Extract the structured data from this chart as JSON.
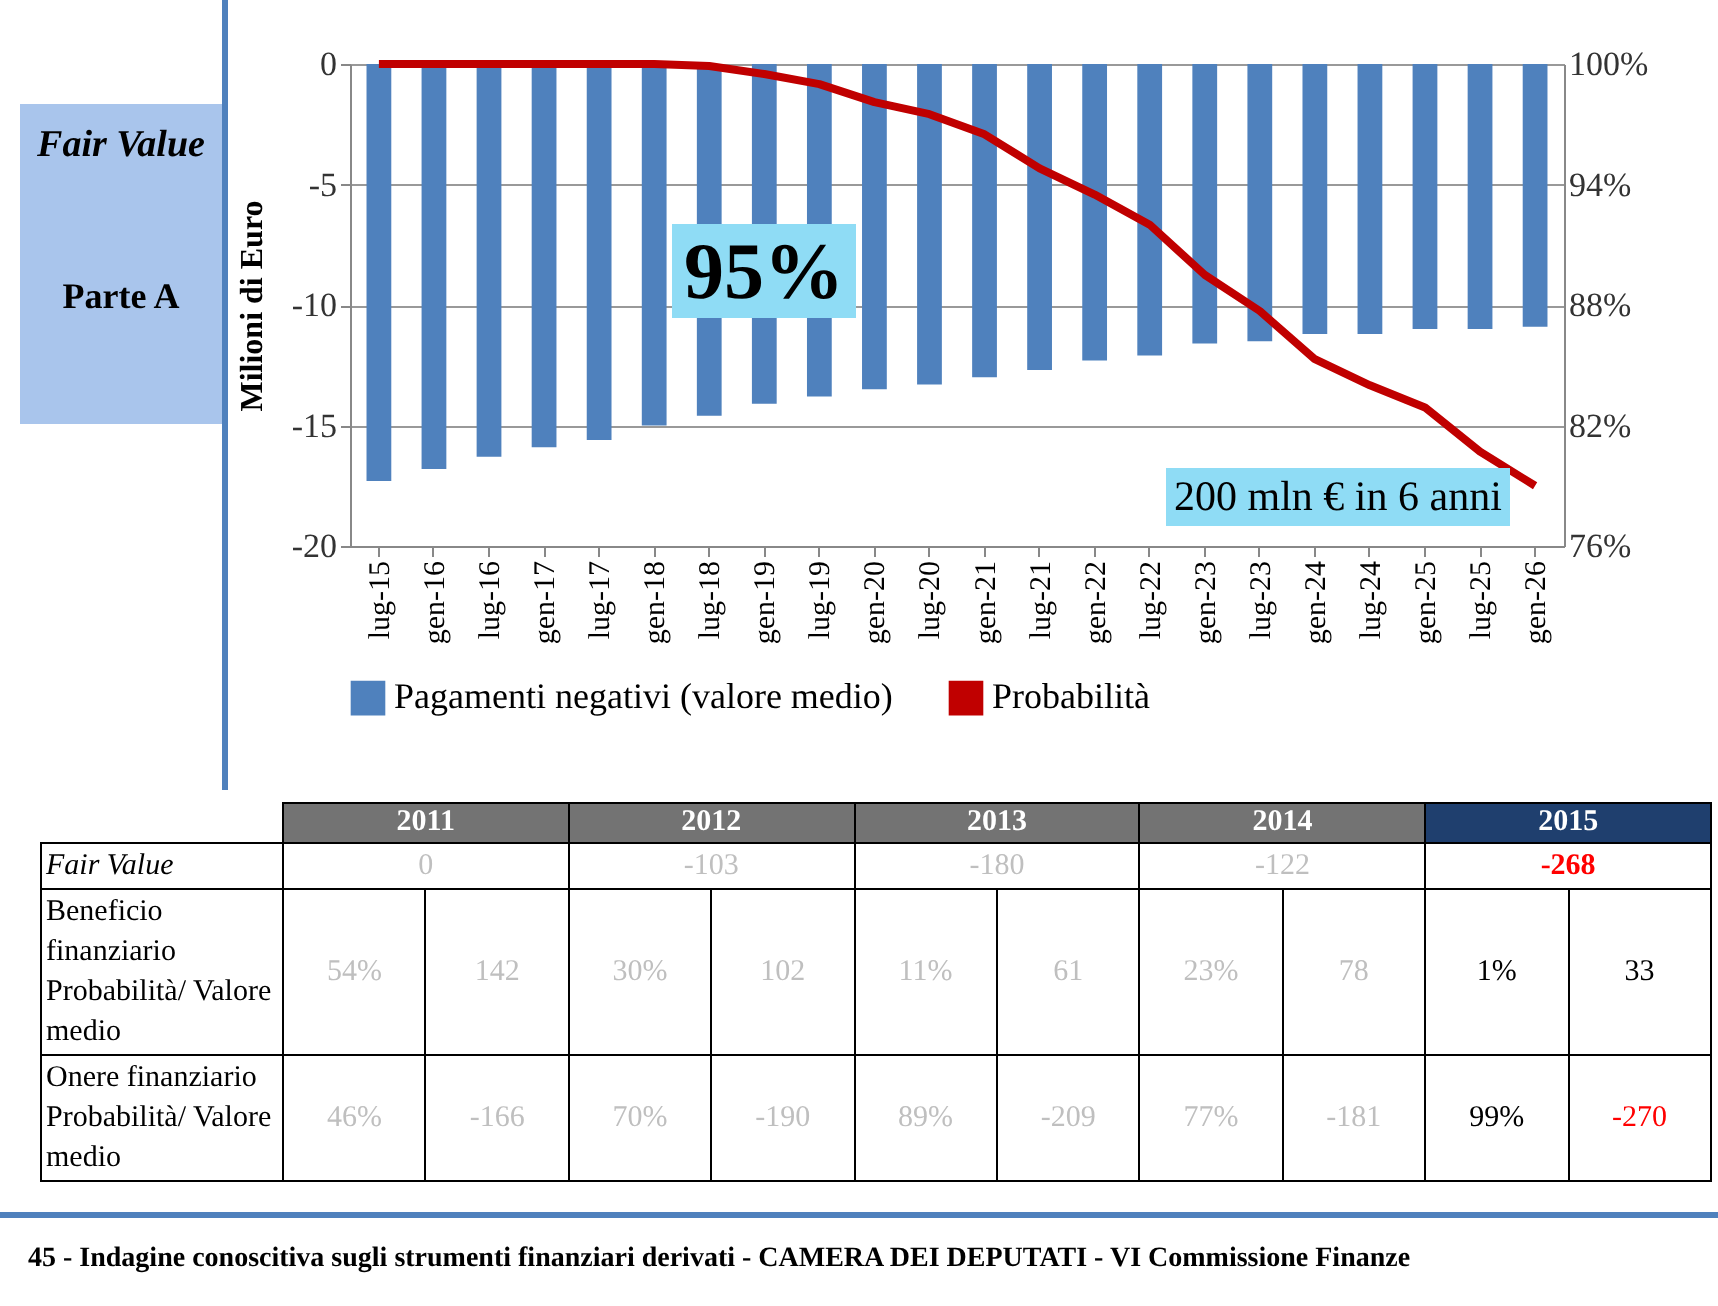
{
  "chart_data": {
    "type": "bar",
    "ylabel": "Milioni di Euro",
    "categories": [
      "lug-15",
      "gen-16",
      "lug-16",
      "gen-17",
      "lug-17",
      "gen-18",
      "lug-18",
      "gen-19",
      "lug-19",
      "gen-20",
      "lug-20",
      "gen-21",
      "lug-21",
      "gen-22",
      "lug-22",
      "gen-23",
      "lug-23",
      "gen-24",
      "lug-24",
      "gen-25",
      "lug-25",
      "gen-26"
    ],
    "series": [
      {
        "name": "Pagamenti negativi (valore medio)",
        "color": "#4f81bd",
        "values": [
          -17.3,
          -16.8,
          -16.3,
          -15.9,
          -15.6,
          -15.0,
          -14.6,
          -14.1,
          -13.8,
          -13.5,
          -13.3,
          -13.0,
          -12.7,
          -12.3,
          -12.1,
          -11.6,
          -11.5,
          -11.2,
          -11.2,
          -11.0,
          -11.0,
          -10.9
        ]
      },
      {
        "name": "Probabilità",
        "type": "line",
        "axis": "y2",
        "color": "#c00000",
        "values": [
          100,
          100,
          100,
          100,
          100,
          100,
          99.9,
          99.5,
          99.0,
          98.1,
          97.5,
          96.5,
          94.8,
          93.5,
          92.0,
          89.5,
          87.7,
          85.3,
          84.0,
          82.9,
          80.7,
          79.0
        ]
      }
    ],
    "ylim": [
      -20,
      0
    ],
    "yticks": [
      -20,
      -15,
      -10,
      -5,
      0
    ],
    "y2lim": [
      76,
      100
    ],
    "y2ticks": [
      {
        "value": 76,
        "label": "76%"
      },
      {
        "value": 82,
        "label": "82%"
      },
      {
        "value": 88,
        "label": "88%"
      },
      {
        "value": 94,
        "label": "94%"
      },
      {
        "value": 100,
        "label": "100%"
      }
    ],
    "grid": "y",
    "legend": "bottom",
    "marker": "none",
    "line_style": "solid",
    "annotations": [
      "95%",
      "200 mln € in 6 anni",
      "Fair Value",
      "Parte A",
      "45 - Indagine conoscitiva sugli strumenti finanziari derivati - CAMERA DEI DEPUTATI - VI Commissione Finanze",
      "2011",
      "2012",
      "2013",
      "2014",
      "2015",
      "Fair Value",
      "0",
      "-103",
      "-180",
      "-122",
      "-268",
      "Beneficio finanziario Probabilità/ Valore medio",
      "54%",
      "142",
      "30%",
      "102",
      "11%",
      "61",
      "23%",
      "78",
      "1%",
      "33",
      "Onere finanziario Probabilità/ Valore medio",
      "46%",
      "-166",
      "70%",
      "-190",
      "89%",
      "-209",
      "77%",
      "-181",
      "99%",
      "-270"
    ]
  }
}
